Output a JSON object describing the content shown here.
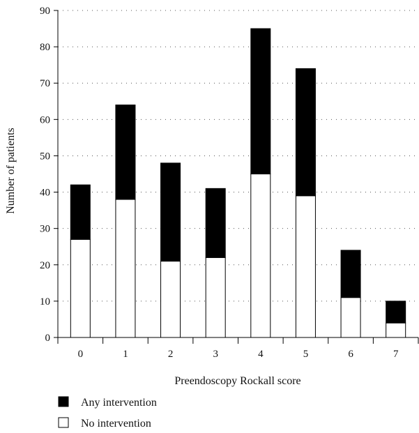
{
  "chart_data": {
    "type": "bar",
    "stacked": true,
    "categories": [
      "0",
      "1",
      "2",
      "3",
      "4",
      "5",
      "6",
      "7"
    ],
    "series": [
      {
        "name": "No intervention",
        "values": [
          27,
          38,
          21,
          22,
          45,
          39,
          11,
          4
        ],
        "color": "#ffffff"
      },
      {
        "name": "Any intervention",
        "values": [
          15,
          26,
          27,
          19,
          40,
          35,
          13,
          6
        ],
        "color": "#000000"
      }
    ],
    "xlabel": "Preendoscopy Rockall score",
    "ylabel": "Number of patients",
    "ylim": [
      0,
      90
    ],
    "yticks": [
      0,
      10,
      20,
      30,
      40,
      50,
      60,
      70,
      80,
      90
    ],
    "grid": "horizontal-dotted",
    "legend": {
      "placement": "bottom-left",
      "items": [
        {
          "label": "Any intervention",
          "color": "#000000"
        },
        {
          "label": "No intervention",
          "color": "#ffffff"
        }
      ]
    }
  }
}
